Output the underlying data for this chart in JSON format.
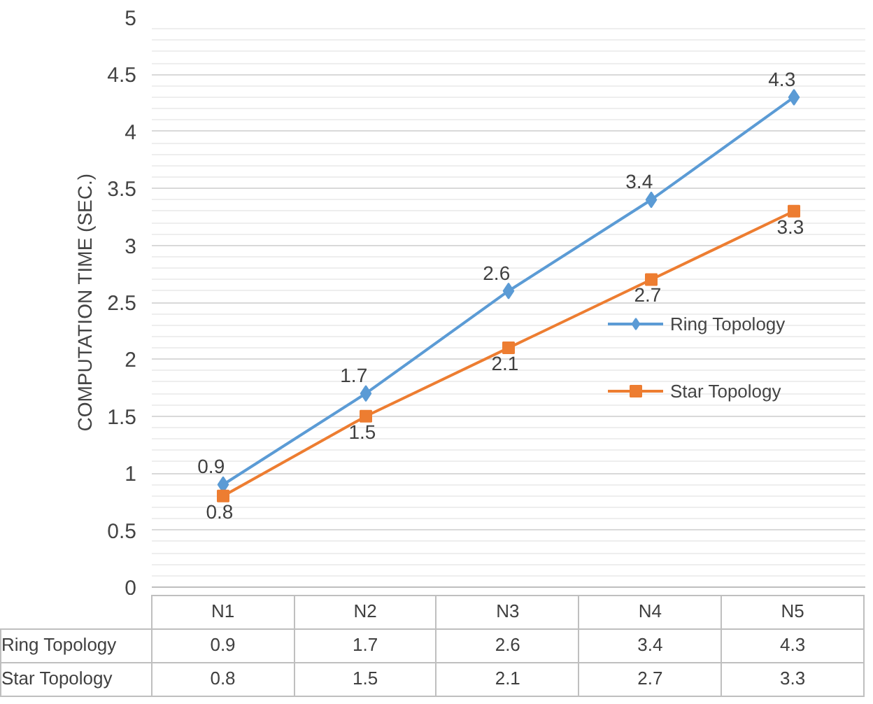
{
  "chart_data": {
    "type": "line",
    "ylabel": "COMPUTATION TIME (SEC.)",
    "categories": [
      "N1",
      "N2",
      "N3",
      "N4",
      "N5"
    ],
    "series": [
      {
        "name": "Ring Topology",
        "color": "#5b9bd5",
        "marker": "diamond",
        "values": [
          0.9,
          1.7,
          2.6,
          3.4,
          4.3
        ],
        "value_labels": [
          "0.9",
          "1.7",
          "2.6",
          "3.4",
          "4.3"
        ]
      },
      {
        "name": "Star Topology",
        "color": "#ed7d31",
        "marker": "square",
        "values": [
          0.8,
          1.5,
          2.1,
          2.7,
          3.3
        ],
        "value_labels": [
          "0.8",
          "1.5",
          "2.1",
          "2.7",
          "3.3"
        ]
      }
    ],
    "ylim": [
      0,
      5
    ],
    "yticks": [
      0,
      0.5,
      1,
      1.5,
      2,
      2.5,
      3,
      3.5,
      4,
      4.5,
      5
    ],
    "grid": "y",
    "legend": "right",
    "line_style": "solid",
    "annotations": [
      "0.9",
      "1.7",
      "2.6",
      "3.4",
      "4.3",
      "0.8",
      "1.5",
      "2.1",
      "2.7",
      "3.3"
    ]
  }
}
